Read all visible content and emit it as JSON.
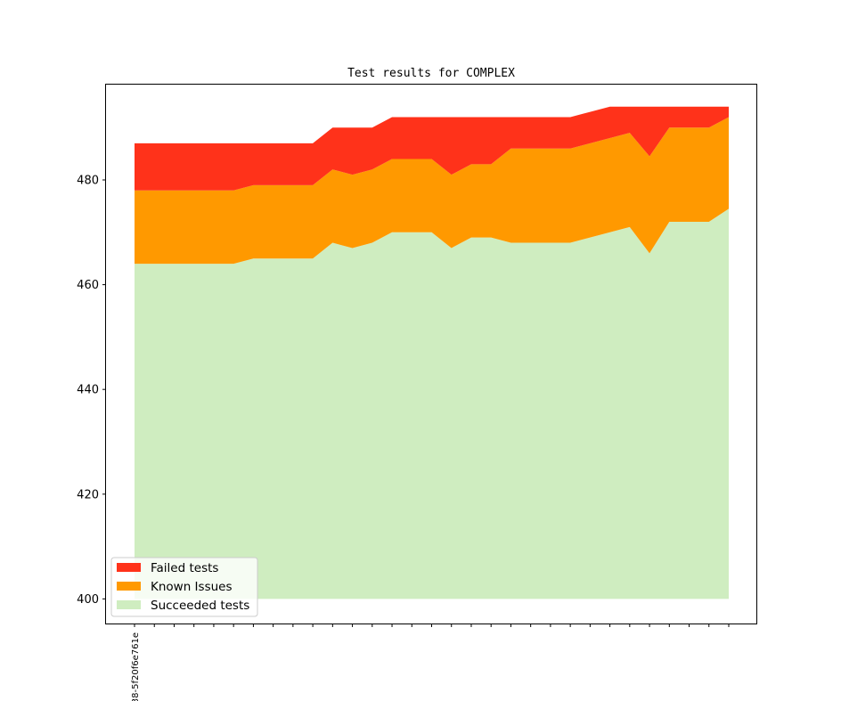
{
  "chart_data": {
    "type": "area",
    "title": "Test results for COMPLEX",
    "xlabel": "",
    "ylabel": "",
    "ylim": [
      395.3,
      498.2
    ],
    "yticks": [
      400,
      420,
      440,
      460,
      480
    ],
    "x_tick_labels": [
      "38-5f20f6e761e"
    ],
    "num_points": 31,
    "stacked": true,
    "baseline": 400,
    "series": [
      {
        "name": "Succeeded tests",
        "color": "#cfedc0",
        "values": [
          464,
          464,
          464,
          464,
          464,
          464,
          465,
          465,
          465,
          465,
          468,
          467,
          468,
          470,
          470,
          470,
          467,
          469,
          469,
          468,
          468,
          468,
          468,
          469,
          470,
          471,
          466,
          472,
          472,
          472,
          474.5
        ]
      },
      {
        "name": "Known Issues",
        "color": "#ff9900",
        "values": [
          478,
          478,
          478,
          478,
          478,
          478,
          479,
          479,
          479,
          479,
          482,
          481,
          482,
          484,
          484,
          484,
          481,
          483,
          483,
          486,
          486,
          486,
          486,
          487,
          488,
          489,
          484.5,
          490,
          490,
          490,
          492
        ]
      },
      {
        "name": "Failed tests",
        "color": "#ff321a",
        "values": [
          487,
          487,
          487,
          487,
          487,
          487,
          487,
          487,
          487,
          487,
          490,
          490,
          490,
          492,
          492,
          492,
          492,
          492,
          492,
          492,
          492,
          492,
          492,
          493,
          494,
          494,
          494,
          494,
          494,
          494,
          494
        ]
      }
    ],
    "legend": {
      "placement": "lower-left",
      "entries": [
        "Failed tests",
        "Known Issues",
        "Succeeded tests"
      ]
    },
    "grid": false
  }
}
